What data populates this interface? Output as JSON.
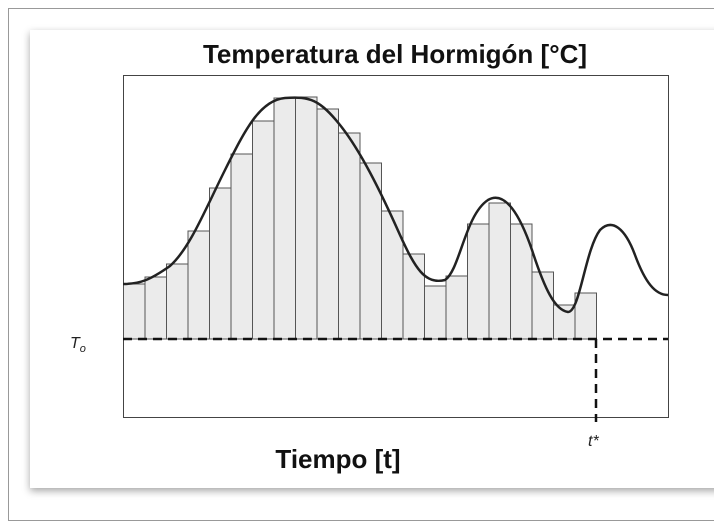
{
  "title": "Temperatura del Hormigón [°C]",
  "x_label": "Tiempo [t]",
  "reference_temperature": {
    "symbol": "T",
    "subscript": "o"
  },
  "end_time": "t*"
}
